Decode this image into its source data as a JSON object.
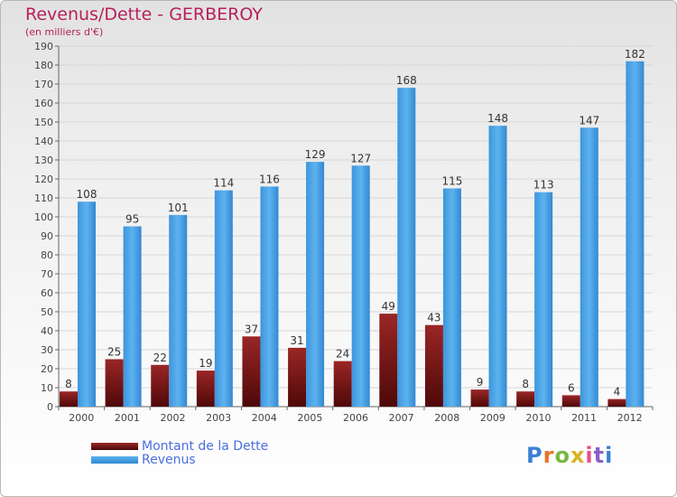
{
  "chart_data": {
    "type": "bar",
    "title": "Revenus/Dette - GERBEROY",
    "subtitle": "(en milliers d'€)",
    "categories": [
      "2000",
      "2001",
      "2002",
      "2003",
      "2004",
      "2005",
      "2006",
      "2007",
      "2008",
      "2009",
      "2010",
      "2011",
      "2012"
    ],
    "series": [
      {
        "name": "Montant de la Dette",
        "values": [
          8,
          25,
          22,
          19,
          37,
          31,
          24,
          49,
          43,
          9,
          8,
          6,
          4
        ],
        "color": "#7a1515"
      },
      {
        "name": "Revenus",
        "values": [
          108,
          95,
          101,
          114,
          116,
          129,
          127,
          168,
          115,
          148,
          113,
          147,
          182
        ],
        "color": "#4aa3e8"
      }
    ],
    "ylim": [
      0,
      190
    ],
    "yticks": [
      0,
      10,
      20,
      30,
      40,
      50,
      60,
      70,
      80,
      90,
      100,
      110,
      120,
      130,
      140,
      150,
      160,
      170,
      180,
      190
    ],
    "grid": true,
    "legend_position": "bottom-left"
  },
  "logo": {
    "text": "Proxiti",
    "colors": [
      "#3a7fd5",
      "#e8732a",
      "#79b842",
      "#d9b320",
      "#e94f88",
      "#8a5fc4"
    ]
  }
}
